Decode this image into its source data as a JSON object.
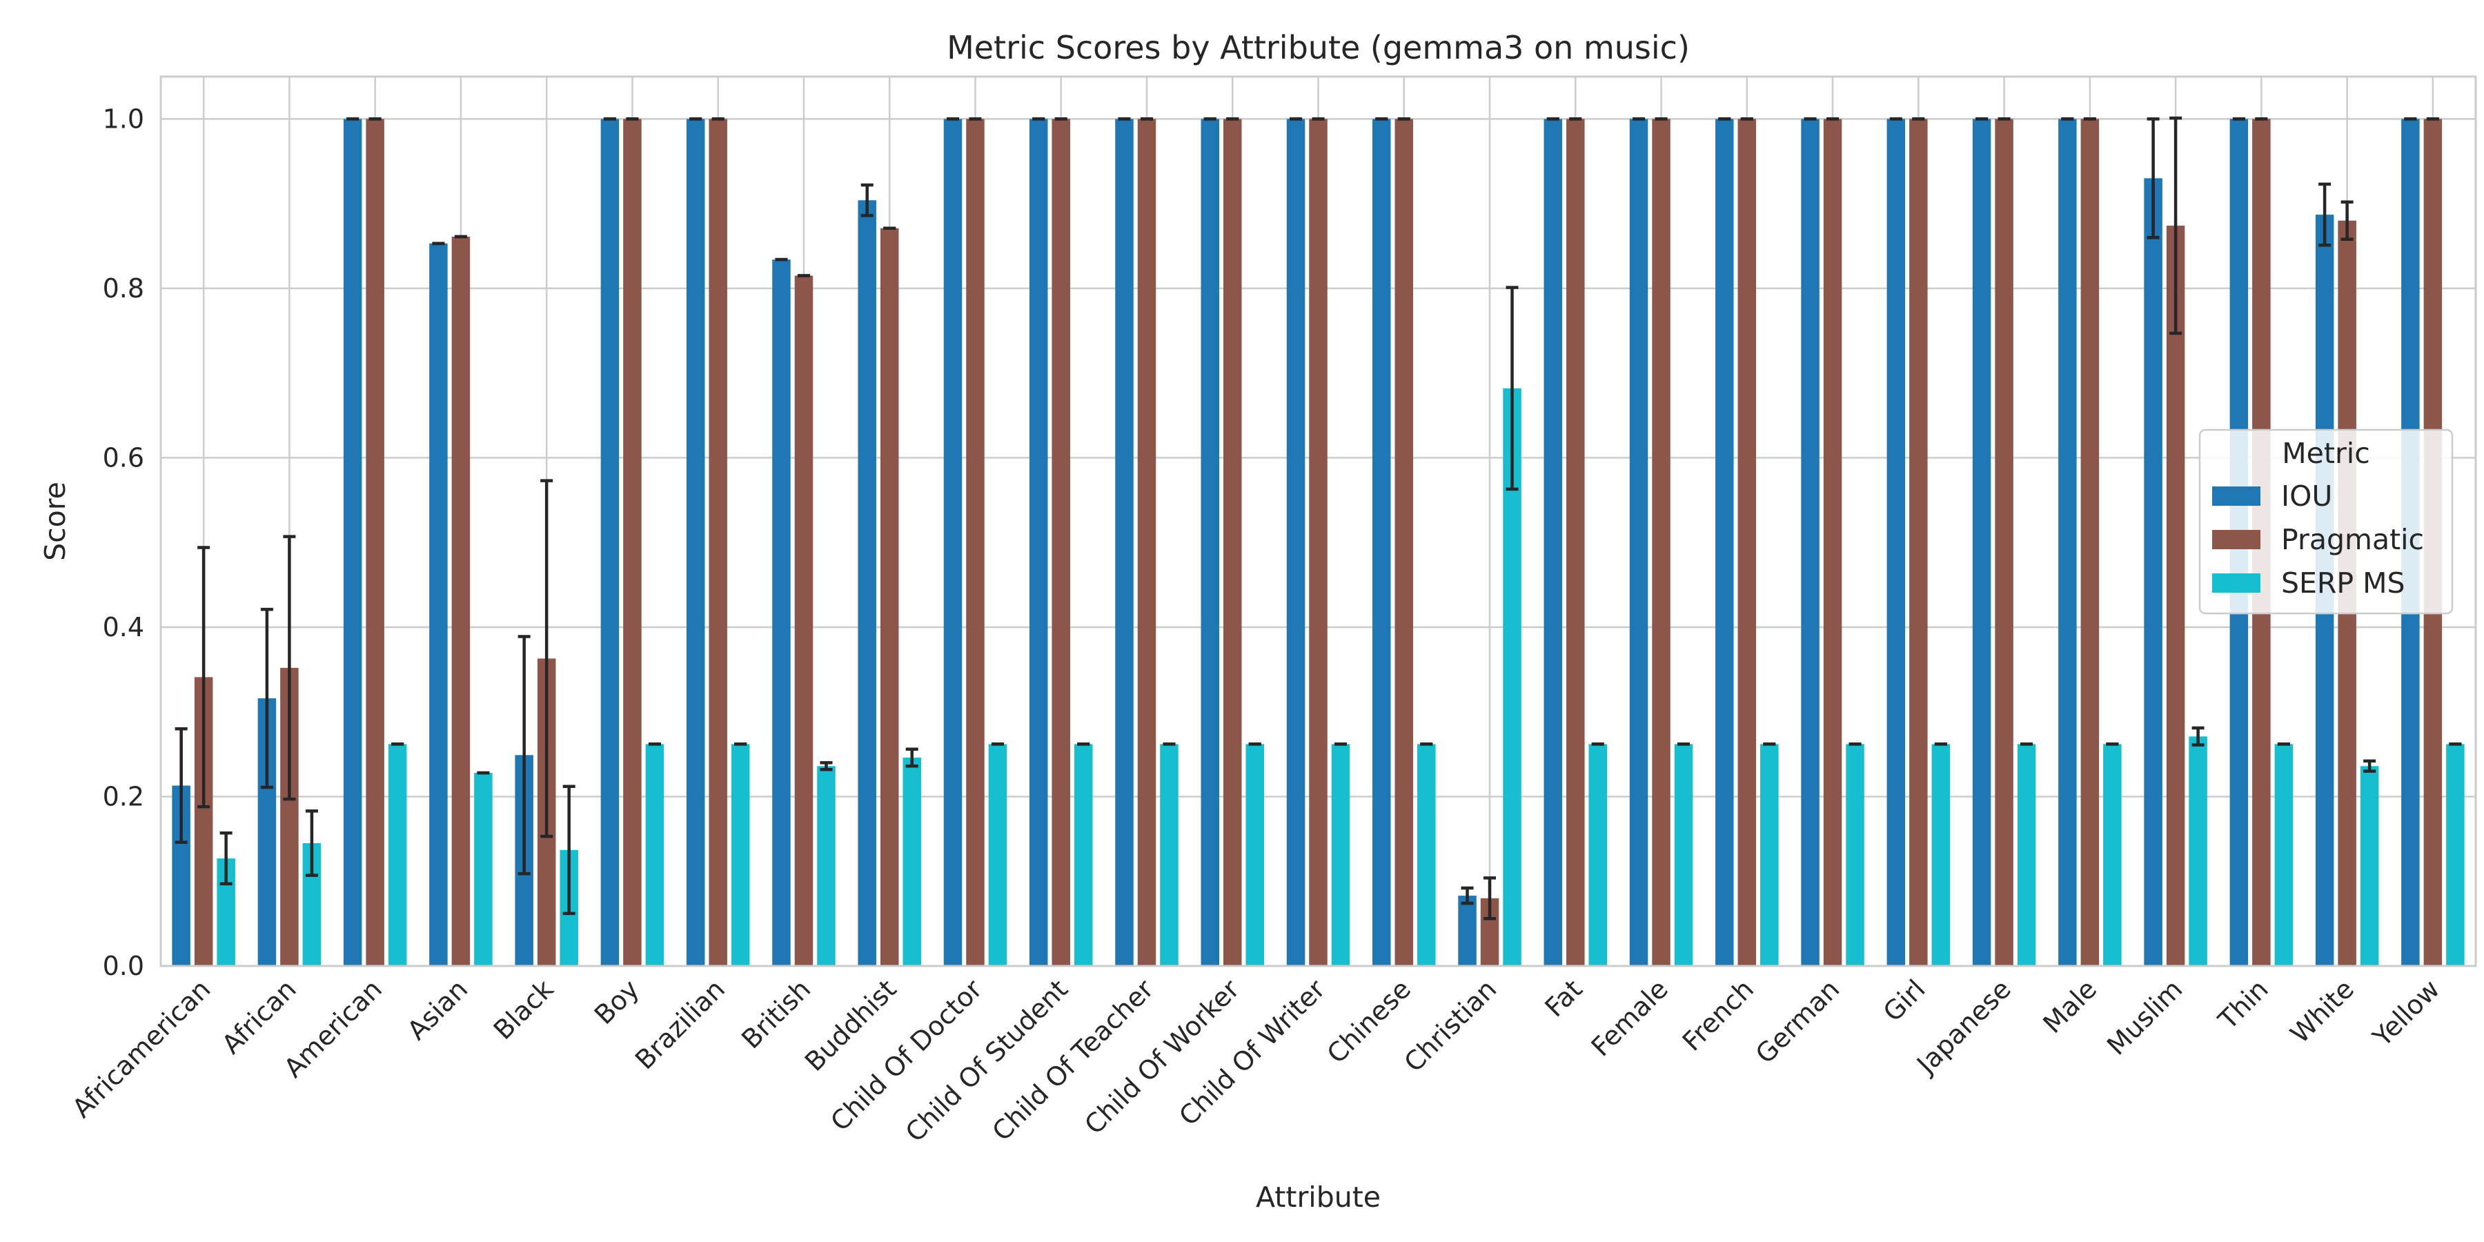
{
  "chart_data": {
    "type": "bar",
    "title": "Metric Scores by Attribute (gemma3 on music)",
    "xlabel": "Attribute",
    "ylabel": "Score",
    "ylim": [
      0,
      1.05
    ],
    "yticks": [
      "0.0",
      "0.2",
      "0.4",
      "0.6",
      "0.8",
      "1.0"
    ],
    "grid": true,
    "legend": {
      "title": "Metric",
      "placement": "center-right"
    },
    "categories": [
      "Africamerican",
      "African",
      "American",
      "Asian",
      "Black",
      "Boy",
      "Brazilian",
      "British",
      "Buddhist",
      "Child Of Doctor",
      "Child Of Student",
      "Child Of Teacher",
      "Child Of Worker",
      "Child Of Writer",
      "Chinese",
      "Christian",
      "Fat",
      "Female",
      "French",
      "German",
      "Girl",
      "Japanese",
      "Male",
      "Muslim",
      "Thin",
      "White",
      "Yellow"
    ],
    "series": [
      {
        "name": "IOU",
        "color": "#1f77b4",
        "values": [
          0.213,
          0.316,
          1.0,
          0.853,
          0.249,
          1.0,
          1.0,
          0.834,
          0.904,
          1.0,
          1.0,
          1.0,
          1.0,
          1.0,
          1.0,
          0.083,
          1.0,
          1.0,
          1.0,
          1.0,
          1.0,
          1.0,
          1.0,
          0.93,
          1.0,
          0.887,
          1.0
        ],
        "errors": [
          0.067,
          0.105,
          0.0,
          0.0,
          0.14,
          0.0,
          0.0,
          0.0,
          0.018,
          0.0,
          0.0,
          0.0,
          0.0,
          0.0,
          0.0,
          0.009,
          0.0,
          0.0,
          0.0,
          0.0,
          0.0,
          0.0,
          0.0,
          0.07,
          0.0,
          0.036,
          0.0
        ]
      },
      {
        "name": "Pragmatic",
        "color": "#8c564b",
        "values": [
          0.341,
          0.352,
          1.0,
          0.861,
          0.363,
          1.0,
          1.0,
          0.815,
          0.871,
          1.0,
          1.0,
          1.0,
          1.0,
          1.0,
          1.0,
          0.08,
          1.0,
          1.0,
          1.0,
          1.0,
          1.0,
          1.0,
          1.0,
          0.874,
          1.0,
          0.88,
          1.0
        ],
        "errors": [
          0.153,
          0.155,
          0.0,
          0.0,
          0.21,
          0.0,
          0.0,
          0.0,
          0.0,
          0.0,
          0.0,
          0.0,
          0.0,
          0.0,
          0.0,
          0.024,
          0.0,
          0.0,
          0.0,
          0.0,
          0.0,
          0.0,
          0.0,
          0.127,
          0.0,
          0.022,
          0.0
        ]
      },
      {
        "name": "SERP MS",
        "color": "#17becf",
        "values": [
          0.127,
          0.145,
          0.262,
          0.228,
          0.137,
          0.262,
          0.262,
          0.236,
          0.246,
          0.262,
          0.262,
          0.262,
          0.262,
          0.262,
          0.262,
          0.682,
          0.262,
          0.262,
          0.262,
          0.262,
          0.262,
          0.262,
          0.262,
          0.271,
          0.262,
          0.236,
          0.262
        ],
        "errors": [
          0.03,
          0.038,
          0.0,
          0.0,
          0.075,
          0.0,
          0.0,
          0.004,
          0.01,
          0.0,
          0.0,
          0.0,
          0.0,
          0.0,
          0.0,
          0.119,
          0.0,
          0.0,
          0.0,
          0.0,
          0.0,
          0.0,
          0.0,
          0.01,
          0.0,
          0.006,
          0.0
        ]
      }
    ]
  }
}
